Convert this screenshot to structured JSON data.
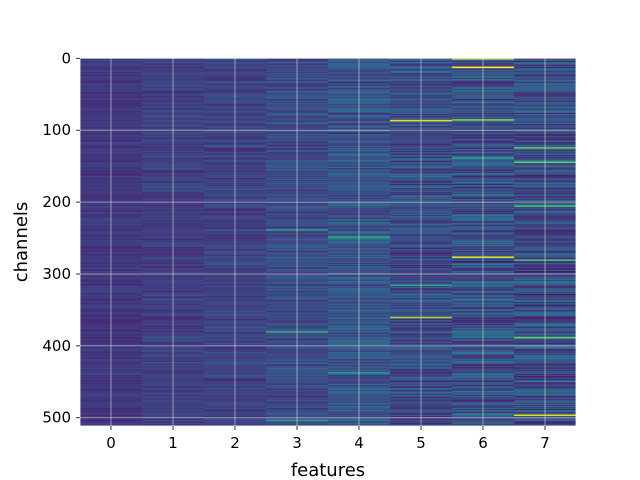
{
  "chart_data": {
    "type": "heatmap",
    "title": "",
    "xlabel": "features",
    "ylabel": "channels",
    "x_categories": [
      "0",
      "1",
      "2",
      "3",
      "4",
      "5",
      "6",
      "7"
    ],
    "y_range": [
      0,
      511
    ],
    "y_ticks": [
      "0",
      "100",
      "200",
      "300",
      "400",
      "500"
    ],
    "y_inverted": true,
    "grid": true,
    "colormap": "viridis",
    "n_rows": 512,
    "columns": [
      {
        "feature": "0",
        "base_level": 0.18,
        "variability": 0.05
      },
      {
        "feature": "1",
        "base_level": 0.2,
        "variability": 0.06
      },
      {
        "feature": "2",
        "base_level": 0.21,
        "variability": 0.07
      },
      {
        "feature": "3",
        "base_level": 0.24,
        "variability": 0.09
      },
      {
        "feature": "4",
        "base_level": 0.27,
        "variability": 0.12
      },
      {
        "feature": "5",
        "base_level": 0.24,
        "variability": 0.14
      },
      {
        "feature": "6",
        "base_level": 0.26,
        "variability": 0.17
      },
      {
        "feature": "7",
        "base_level": 0.25,
        "variability": 0.17
      }
    ],
    "highlights": [
      {
        "feature": "3",
        "channel": 238,
        "value": 0.6
      },
      {
        "feature": "3",
        "channel": 380,
        "value": 0.65
      },
      {
        "feature": "3",
        "channel": 503,
        "value": 0.55
      },
      {
        "feature": "4",
        "channel": 248,
        "value": 0.6
      },
      {
        "feature": "4",
        "channel": 249,
        "value": 0.55
      },
      {
        "feature": "4",
        "channel": 437,
        "value": 0.55
      },
      {
        "feature": "5",
        "channel": 86,
        "value": 0.95
      },
      {
        "feature": "5",
        "channel": 360,
        "value": 0.85
      },
      {
        "feature": "5",
        "channel": 315,
        "value": 0.6
      },
      {
        "feature": "6",
        "channel": 0,
        "value": 0.9
      },
      {
        "feature": "6",
        "channel": 12,
        "value": 1.0
      },
      {
        "feature": "6",
        "channel": 85,
        "value": 0.8
      },
      {
        "feature": "6",
        "channel": 276,
        "value": 0.95
      },
      {
        "feature": "6",
        "channel": 138,
        "value": 0.6
      },
      {
        "feature": "7",
        "channel": 124,
        "value": 0.75
      },
      {
        "feature": "7",
        "channel": 144,
        "value": 0.75
      },
      {
        "feature": "7",
        "channel": 205,
        "value": 0.7
      },
      {
        "feature": "7",
        "channel": 280,
        "value": 0.7
      },
      {
        "feature": "7",
        "channel": 388,
        "value": 0.75
      },
      {
        "feature": "7",
        "channel": 496,
        "value": 0.95
      }
    ],
    "colors": {
      "background": "#3b528b",
      "grid": "#d9d9d9",
      "spine": "#ffffff"
    }
  }
}
